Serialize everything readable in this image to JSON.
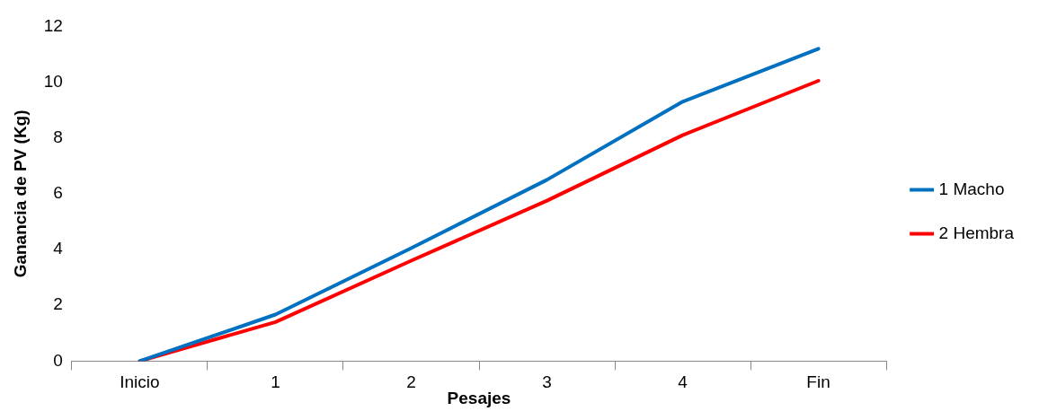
{
  "chart_data": {
    "type": "line",
    "xlabel": "Pesajes",
    "ylabel": "Ganancia de PV (Kg)",
    "categories": [
      "Inicio",
      "1",
      "2",
      "3",
      "4",
      "Fin"
    ],
    "series": [
      {
        "name": "1 Macho",
        "color": "#0070c0",
        "values": [
          0,
          1.67,
          4.05,
          6.5,
          9.3,
          11.2
        ]
      },
      {
        "name": "2 Hembra",
        "color": "#ff0000",
        "values": [
          0,
          1.4,
          3.6,
          5.75,
          8.1,
          10.05
        ]
      }
    ],
    "ylim": [
      0,
      12
    ],
    "yticks": [
      0,
      2,
      4,
      6,
      8,
      10,
      12
    ],
    "grid": false,
    "legend": "right",
    "marker": "none",
    "line_style": "solid"
  }
}
